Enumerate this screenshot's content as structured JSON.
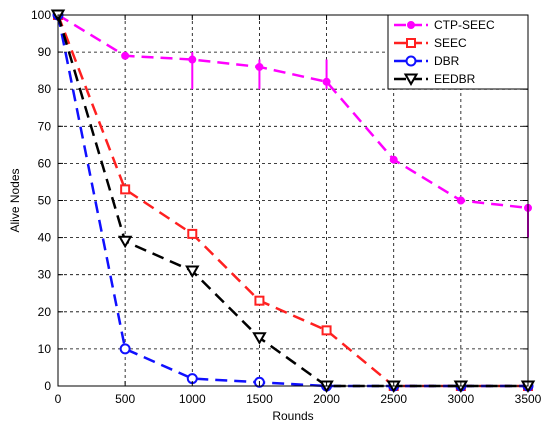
{
  "chart_data": {
    "type": "line",
    "xlabel": "Rounds",
    "ylabel": "Alive Nodes",
    "xlim": [
      0,
      3500
    ],
    "ylim": [
      0,
      100
    ],
    "x_ticks": [
      0,
      500,
      1000,
      1500,
      2000,
      2500,
      3000,
      3500
    ],
    "y_ticks": [
      0,
      10,
      20,
      30,
      40,
      50,
      60,
      70,
      80,
      90,
      100
    ],
    "grid": true,
    "legend_position": "top-right",
    "x": [
      0,
      500,
      1000,
      1500,
      2000,
      2500,
      3000,
      3500
    ],
    "series": [
      {
        "name": "CTP-SEEC",
        "color": "#ff00ff",
        "marker": "dot",
        "values": [
          100,
          89,
          88,
          86,
          82,
          61,
          50,
          48
        ],
        "error_bars": [
          {
            "x": 1000,
            "low": 80,
            "high": 90
          },
          {
            "x": 1500,
            "low": 80,
            "high": 88
          },
          {
            "x": 2000,
            "low": 80,
            "high": 88
          },
          {
            "x": 3500,
            "low": 40,
            "high": 49
          }
        ]
      },
      {
        "name": "SEEC",
        "color": "#ff2020",
        "marker": "square",
        "values": [
          100,
          53,
          41,
          23,
          15,
          0,
          0,
          0
        ]
      },
      {
        "name": "DBR",
        "color": "#1010ff",
        "marker": "circle",
        "values": [
          100,
          10,
          2,
          1,
          0,
          0,
          0,
          0
        ]
      },
      {
        "name": "EEDBR",
        "color": "#000000",
        "marker": "triangle-down",
        "values": [
          100,
          39,
          31,
          13,
          0,
          0,
          0,
          0
        ]
      }
    ]
  }
}
